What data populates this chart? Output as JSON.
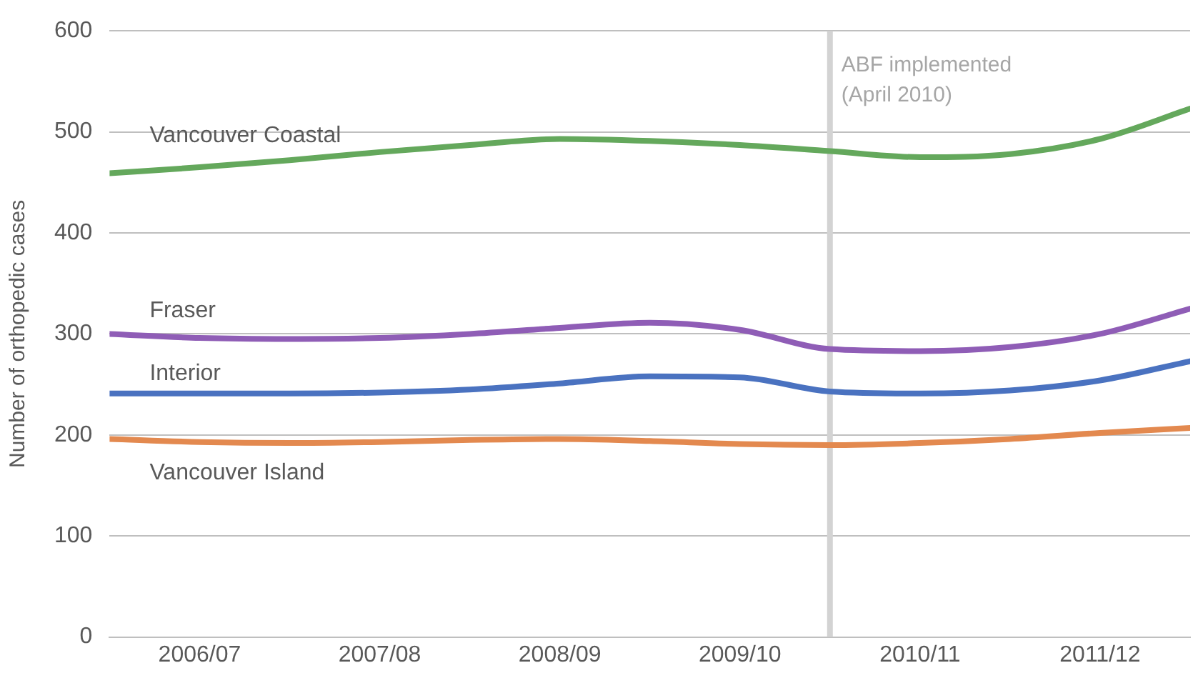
{
  "chart_data": {
    "type": "line",
    "ylabel": "Number of orthopedic cases",
    "x": [
      "2006-04",
      "2006-10",
      "2007-04",
      "2007-10",
      "2008-04",
      "2008-10",
      "2009-04",
      "2009-10",
      "2010-04",
      "2010-10",
      "2011-04",
      "2011-10",
      "2012-04"
    ],
    "series": [
      {
        "name": "Vancouver Coastal",
        "color": "#64a85c",
        "values": [
          459,
          465,
          472,
          480,
          487,
          493,
          491,
          487,
          481,
          475,
          478,
          493,
          523
        ]
      },
      {
        "name": "Fraser",
        "color": "#8f5db6",
        "values": [
          300,
          296,
          295,
          296,
          300,
          306,
          311,
          304,
          285,
          283,
          287,
          300,
          325
        ]
      },
      {
        "name": "Interior",
        "color": "#4a72c0",
        "values": [
          241,
          241,
          241,
          242,
          245,
          251,
          258,
          257,
          243,
          241,
          244,
          254,
          273
        ]
      },
      {
        "name": "Vancouver Island",
        "color": "#e3894f",
        "values": [
          196,
          193,
          192,
          193,
          195,
          196,
          194,
          191,
          190,
          192,
          196,
          202,
          207
        ]
      }
    ],
    "xlim": [
      "2006-04",
      "2012-04"
    ],
    "xticks": [
      {
        "value": "2006-10",
        "label": "2006/07"
      },
      {
        "value": "2007-10",
        "label": "2007/08"
      },
      {
        "value": "2008-10",
        "label": "2008/09"
      },
      {
        "value": "2009-10",
        "label": "2009/10"
      },
      {
        "value": "2010-10",
        "label": "2010/11"
      },
      {
        "value": "2011-10",
        "label": "2011/12"
      }
    ],
    "ylim": [
      0,
      600
    ],
    "yticks": [
      0,
      100,
      200,
      300,
      400,
      500,
      600
    ],
    "ref_lines": [
      {
        "axis": "x",
        "value": "2010-04",
        "label": "ABF implemented\n(April 2010)",
        "color": "#d3d3d3"
      }
    ],
    "grid": "y",
    "legend": false,
    "marker": "none",
    "line_style": "solid"
  }
}
